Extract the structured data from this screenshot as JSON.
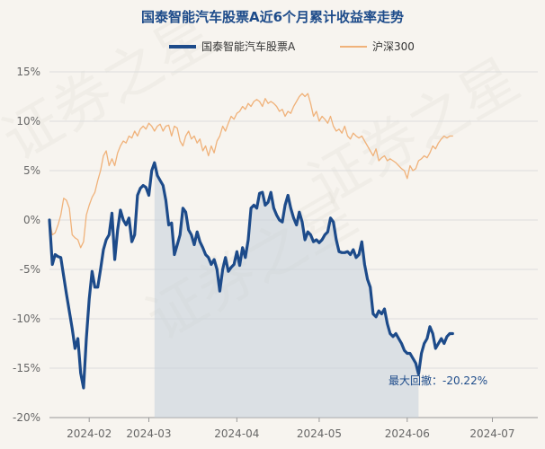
{
  "chart_data": {
    "type": "line",
    "title": "国泰智能汽车股票A近6个月累计收益率走势",
    "xlabel": "",
    "ylabel": "",
    "ylim": [
      -20,
      15
    ],
    "y_ticks": [
      15,
      10,
      5,
      0,
      -5,
      -10,
      -15,
      -20
    ],
    "y_tick_labels": [
      "15%",
      "10%",
      "5%",
      "0%",
      "-5%",
      "-10%",
      "-15%",
      "-20%"
    ],
    "x_range": [
      0,
      172
    ],
    "x_ticks": [
      {
        "x": 14,
        "label": "2024-02"
      },
      {
        "x": 35,
        "label": "2024-03"
      },
      {
        "x": 66,
        "label": "2024-04"
      },
      {
        "x": 95,
        "label": "2024-05"
      },
      {
        "x": 126,
        "label": "2024-06"
      },
      {
        "x": 156,
        "label": "2024-07"
      }
    ],
    "grid": "horizontal",
    "legend_position": "top-center",
    "watermark": "证券之星",
    "series": [
      {
        "name": "国泰智能汽车股票A",
        "color": "#1d4b8a",
        "points": [
          [
            0,
            0
          ],
          [
            1,
            -4.5
          ],
          [
            2,
            -3.5
          ],
          [
            3,
            -3.7
          ],
          [
            4,
            -3.8
          ],
          [
            6,
            -7.5
          ],
          [
            8,
            -11.0
          ],
          [
            9,
            -13.0
          ],
          [
            10,
            -12.0
          ],
          [
            11,
            -15.5
          ],
          [
            12,
            -17.0
          ],
          [
            13,
            -12.0
          ],
          [
            14,
            -8.0
          ],
          [
            15,
            -5.2
          ],
          [
            16,
            -6.8
          ],
          [
            17,
            -6.8
          ],
          [
            18,
            -5.0
          ],
          [
            19,
            -3.0
          ],
          [
            20,
            -2.0
          ],
          [
            21,
            -1.5
          ],
          [
            22,
            0.7
          ],
          [
            23,
            -4.0
          ],
          [
            24,
            -1.0
          ],
          [
            25,
            1.0
          ],
          [
            26,
            0.0
          ],
          [
            27,
            -0.5
          ],
          [
            28,
            0.2
          ],
          [
            29,
            -2.2
          ],
          [
            30,
            -1.5
          ],
          [
            31,
            2.5
          ],
          [
            32,
            3.2
          ],
          [
            33,
            3.5
          ],
          [
            34,
            3.3
          ],
          [
            35,
            2.5
          ],
          [
            36,
            5.0
          ],
          [
            37,
            5.8
          ],
          [
            38,
            4.5
          ],
          [
            39,
            4.0
          ],
          [
            40,
            3.5
          ],
          [
            41,
            2.0
          ],
          [
            42,
            -0.5
          ],
          [
            43,
            -0.3
          ],
          [
            44,
            -3.5
          ],
          [
            45,
            -2.5
          ],
          [
            46,
            -1.5
          ],
          [
            47,
            1.2
          ],
          [
            48,
            0.8
          ],
          [
            49,
            -1.0
          ],
          [
            50,
            -1.5
          ],
          [
            51,
            -2.5
          ],
          [
            52,
            -1.2
          ],
          [
            53,
            -2.2
          ],
          [
            54,
            -2.8
          ],
          [
            55,
            -3.5
          ],
          [
            56,
            -3.8
          ],
          [
            57,
            -4.5
          ],
          [
            58,
            -4.0
          ],
          [
            59,
            -5.0
          ],
          [
            60,
            -7.2
          ],
          [
            61,
            -5.0
          ],
          [
            62,
            -3.8
          ],
          [
            63,
            -5.2
          ],
          [
            64,
            -4.8
          ],
          [
            65,
            -4.5
          ],
          [
            66,
            -3.2
          ],
          [
            67,
            -4.6
          ],
          [
            68,
            -2.8
          ],
          [
            69,
            -3.8
          ],
          [
            70,
            -2.0
          ],
          [
            71,
            1.2
          ],
          [
            72,
            1.5
          ],
          [
            73,
            1.2
          ],
          [
            74,
            2.7
          ],
          [
            75,
            2.8
          ],
          [
            76,
            1.5
          ],
          [
            77,
            1.8
          ],
          [
            78,
            2.8
          ],
          [
            79,
            1.2
          ],
          [
            80,
            0.5
          ],
          [
            81,
            0.0
          ],
          [
            82,
            -0.2
          ],
          [
            83,
            1.5
          ],
          [
            84,
            2.5
          ],
          [
            85,
            1.2
          ],
          [
            86,
            0.2
          ],
          [
            87,
            -0.5
          ],
          [
            88,
            0.8
          ],
          [
            89,
            -0.2
          ],
          [
            90,
            -2.0
          ],
          [
            91,
            -1.2
          ],
          [
            92,
            -1.5
          ],
          [
            93,
            -2.2
          ],
          [
            94,
            -2.0
          ],
          [
            95,
            -2.3
          ],
          [
            96,
            -2.0
          ],
          [
            97,
            -1.5
          ],
          [
            98,
            -1.2
          ],
          [
            99,
            0.2
          ],
          [
            100,
            -0.2
          ],
          [
            101,
            -2.0
          ],
          [
            102,
            -3.2
          ],
          [
            103,
            -3.3
          ],
          [
            104,
            -3.3
          ],
          [
            105,
            -3.2
          ],
          [
            106,
            -3.5
          ],
          [
            107,
            -3.0
          ],
          [
            108,
            -3.8
          ],
          [
            109,
            -3.5
          ],
          [
            110,
            -2.2
          ],
          [
            111,
            -4.5
          ],
          [
            112,
            -6.0
          ],
          [
            113,
            -6.8
          ],
          [
            114,
            -9.5
          ],
          [
            115,
            -9.8
          ],
          [
            116,
            -9.2
          ],
          [
            117,
            -9.5
          ],
          [
            118,
            -9.0
          ],
          [
            119,
            -10.5
          ],
          [
            120,
            -11.5
          ],
          [
            121,
            -11.8
          ],
          [
            122,
            -11.5
          ],
          [
            123,
            -12.0
          ],
          [
            124,
            -12.5
          ],
          [
            125,
            -13.2
          ],
          [
            126,
            -13.5
          ],
          [
            127,
            -13.5
          ],
          [
            128,
            -14.0
          ],
          [
            129,
            -14.5
          ],
          [
            130,
            -15.6
          ],
          [
            131,
            -13.5
          ],
          [
            132,
            -12.5
          ],
          [
            133,
            -12.0
          ],
          [
            134,
            -10.8
          ],
          [
            135,
            -11.5
          ],
          [
            136,
            -13.0
          ],
          [
            137,
            -12.5
          ],
          [
            138,
            -12.0
          ],
          [
            139,
            -12.5
          ],
          [
            140,
            -11.8
          ],
          [
            141,
            -11.5
          ],
          [
            142,
            -11.5
          ]
        ]
      },
      {
        "name": "沪深300",
        "color": "#f0b27a",
        "points": [
          [
            0,
            0
          ],
          [
            1,
            -1.5
          ],
          [
            2,
            -1.3
          ],
          [
            3,
            -0.5
          ],
          [
            4,
            0.5
          ],
          [
            5,
            2.2
          ],
          [
            6,
            2.0
          ],
          [
            7,
            1.2
          ],
          [
            8,
            -1.5
          ],
          [
            9,
            -1.8
          ],
          [
            10,
            -2.0
          ],
          [
            11,
            -2.8
          ],
          [
            12,
            -2.2
          ],
          [
            13,
            0.5
          ],
          [
            14,
            1.5
          ],
          [
            15,
            2.3
          ],
          [
            16,
            2.8
          ],
          [
            17,
            4.0
          ],
          [
            18,
            5.0
          ],
          [
            19,
            6.5
          ],
          [
            20,
            7.0
          ],
          [
            21,
            5.5
          ],
          [
            22,
            6.2
          ],
          [
            23,
            5.5
          ],
          [
            24,
            6.8
          ],
          [
            25,
            7.5
          ],
          [
            26,
            8.0
          ],
          [
            27,
            7.8
          ],
          [
            28,
            8.5
          ],
          [
            29,
            8.3
          ],
          [
            30,
            9.0
          ],
          [
            31,
            8.5
          ],
          [
            32,
            9.2
          ],
          [
            33,
            9.5
          ],
          [
            34,
            9.2
          ],
          [
            35,
            9.8
          ],
          [
            36,
            9.5
          ],
          [
            37,
            9.0
          ],
          [
            38,
            9.5
          ],
          [
            39,
            9.7
          ],
          [
            40,
            9.0
          ],
          [
            41,
            9.5
          ],
          [
            42,
            9.6
          ],
          [
            43,
            8.5
          ],
          [
            44,
            9.5
          ],
          [
            45,
            9.3
          ],
          [
            46,
            8.0
          ],
          [
            47,
            7.5
          ],
          [
            48,
            8.5
          ],
          [
            49,
            9.0
          ],
          [
            50,
            8.2
          ],
          [
            51,
            8.5
          ],
          [
            52,
            7.8
          ],
          [
            53,
            8.2
          ],
          [
            54,
            7.0
          ],
          [
            55,
            7.5
          ],
          [
            56,
            6.5
          ],
          [
            57,
            7.5
          ],
          [
            58,
            6.8
          ],
          [
            59,
            8.0
          ],
          [
            60,
            8.5
          ],
          [
            61,
            9.5
          ],
          [
            62,
            9.0
          ],
          [
            63,
            9.8
          ],
          [
            64,
            10.5
          ],
          [
            65,
            10.2
          ],
          [
            66,
            10.8
          ],
          [
            67,
            11.0
          ],
          [
            68,
            11.5
          ],
          [
            69,
            11.2
          ],
          [
            70,
            11.8
          ],
          [
            71,
            11.5
          ],
          [
            72,
            12.0
          ],
          [
            73,
            12.2
          ],
          [
            74,
            12.0
          ],
          [
            75,
            11.5
          ],
          [
            76,
            12.3
          ],
          [
            77,
            11.8
          ],
          [
            78,
            12.0
          ],
          [
            79,
            11.8
          ],
          [
            80,
            11.5
          ],
          [
            81,
            11.0
          ],
          [
            82,
            11.2
          ],
          [
            83,
            10.5
          ],
          [
            84,
            11.0
          ],
          [
            85,
            10.8
          ],
          [
            86,
            11.5
          ],
          [
            87,
            12.0
          ],
          [
            88,
            12.5
          ],
          [
            89,
            12.8
          ],
          [
            90,
            12.5
          ],
          [
            91,
            12.8
          ],
          [
            92,
            11.8
          ],
          [
            93,
            10.5
          ],
          [
            94,
            11.0
          ],
          [
            95,
            10.0
          ],
          [
            96,
            10.5
          ],
          [
            97,
            10.2
          ],
          [
            98,
            9.8
          ],
          [
            99,
            10.5
          ],
          [
            100,
            9.5
          ],
          [
            101,
            9.0
          ],
          [
            102,
            9.2
          ],
          [
            103,
            8.8
          ],
          [
            104,
            9.5
          ],
          [
            105,
            8.5
          ],
          [
            106,
            8.2
          ],
          [
            107,
            8.8
          ],
          [
            108,
            8.5
          ],
          [
            109,
            8.3
          ],
          [
            110,
            8.5
          ],
          [
            111,
            8.0
          ],
          [
            112,
            7.5
          ],
          [
            113,
            7.0
          ],
          [
            114,
            6.5
          ],
          [
            115,
            7.2
          ],
          [
            116,
            6.0
          ],
          [
            117,
            6.3
          ],
          [
            118,
            6.5
          ],
          [
            119,
            6.0
          ],
          [
            120,
            6.2
          ],
          [
            121,
            6.0
          ],
          [
            122,
            5.8
          ],
          [
            123,
            5.5
          ],
          [
            124,
            5.2
          ],
          [
            125,
            5.0
          ],
          [
            126,
            4.2
          ],
          [
            127,
            5.5
          ],
          [
            128,
            5.0
          ],
          [
            129,
            5.2
          ],
          [
            130,
            6.0
          ],
          [
            131,
            6.2
          ],
          [
            132,
            6.5
          ],
          [
            133,
            6.3
          ],
          [
            134,
            6.8
          ],
          [
            135,
            7.5
          ],
          [
            136,
            7.2
          ],
          [
            137,
            7.8
          ],
          [
            138,
            8.2
          ],
          [
            139,
            8.5
          ],
          [
            140,
            8.3
          ],
          [
            141,
            8.5
          ],
          [
            142,
            8.5
          ]
        ]
      }
    ],
    "drawdown": {
      "label": "最大回撤：",
      "value_text": "-20.22%",
      "start_x": 37,
      "end_x": 130
    }
  }
}
